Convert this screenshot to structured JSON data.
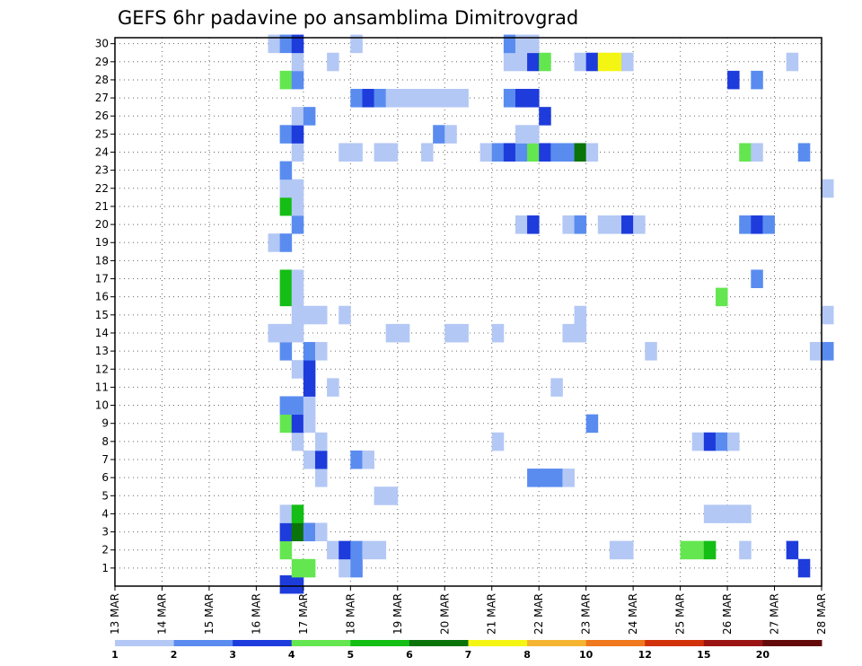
{
  "chart_data": {
    "type": "heatmap",
    "title": "GEFS 6hr padavine po ansamblima Dimitrovgrad",
    "x_ticks": [
      "13 MAR",
      "14 MAR",
      "15 MAR",
      "16 MAR",
      "17 MAR",
      "18 MAR",
      "19 MAR",
      "20 MAR",
      "21 MAR",
      "22 MAR",
      "23 MAR",
      "24 MAR",
      "25 MAR",
      "26 MAR",
      "27 MAR",
      "28 MAR"
    ],
    "x_range": [
      "13 MAR",
      "28 MAR"
    ],
    "y_ticks": [
      "1",
      "2",
      "3",
      "4",
      "5",
      "6",
      "7",
      "8",
      "9",
      "10",
      "11",
      "12",
      "13",
      "14",
      "15",
      "16",
      "17",
      "18",
      "19",
      "20",
      "21",
      "22",
      "23",
      "24",
      "25",
      "26",
      "27",
      "28",
      "29",
      "30"
    ],
    "y_range": [
      0,
      30
    ],
    "grid": true,
    "levels": [
      "1",
      "2",
      "3",
      "4",
      "5",
      "6",
      "7",
      "8",
      "10",
      "12",
      "15",
      "20"
    ],
    "level_colors": [
      "#b4c8f5",
      "#5a8cf0",
      "#1e3cdc",
      "#64e650",
      "#14be14",
      "#0a730a",
      "#f5f514",
      "#f5b432",
      "#f0781e",
      "#d2320a",
      "#9b1414",
      "#640a0a"
    ],
    "cells_note": "each cell: [x index in 6-hour steps from 13 MAR 00 UTC, ensemble member, class (1=1-2 ... 6=6-7 ... 7=7-8)]",
    "cells": [
      [
        14,
        0,
        3
      ],
      [
        15,
        0,
        3
      ],
      [
        15,
        1,
        4
      ],
      [
        16,
        1,
        4
      ],
      [
        19,
        1,
        1
      ],
      [
        20,
        1,
        2
      ],
      [
        58,
        1,
        3
      ],
      [
        14,
        2,
        4
      ],
      [
        18,
        2,
        1
      ],
      [
        19,
        2,
        3
      ],
      [
        20,
        2,
        2
      ],
      [
        21,
        2,
        1
      ],
      [
        22,
        2,
        1
      ],
      [
        42,
        2,
        1
      ],
      [
        43,
        2,
        1
      ],
      [
        48,
        2,
        4
      ],
      [
        49,
        2,
        4
      ],
      [
        50,
        2,
        5
      ],
      [
        53,
        2,
        1
      ],
      [
        57,
        2,
        3
      ],
      [
        14,
        3,
        3
      ],
      [
        15,
        3,
        6
      ],
      [
        16,
        3,
        2
      ],
      [
        17,
        3,
        1
      ],
      [
        14,
        4,
        1
      ],
      [
        15,
        4,
        5
      ],
      [
        50,
        4,
        1
      ],
      [
        51,
        4,
        1
      ],
      [
        52,
        4,
        1
      ],
      [
        53,
        4,
        1
      ],
      [
        22,
        5,
        1
      ],
      [
        23,
        5,
        1
      ],
      [
        17,
        6,
        1
      ],
      [
        35,
        6,
        2
      ],
      [
        36,
        6,
        2
      ],
      [
        37,
        6,
        2
      ],
      [
        38,
        6,
        1
      ],
      [
        16,
        7,
        1
      ],
      [
        17,
        7,
        3
      ],
      [
        20,
        7,
        2
      ],
      [
        21,
        7,
        1
      ],
      [
        15,
        8,
        1
      ],
      [
        17,
        8,
        1
      ],
      [
        32,
        8,
        1
      ],
      [
        49,
        8,
        1
      ],
      [
        50,
        8,
        3
      ],
      [
        51,
        8,
        2
      ],
      [
        52,
        8,
        1
      ],
      [
        14,
        9,
        4
      ],
      [
        15,
        9,
        3
      ],
      [
        16,
        9,
        1
      ],
      [
        40,
        9,
        2
      ],
      [
        14,
        10,
        2
      ],
      [
        15,
        10,
        2
      ],
      [
        16,
        10,
        1
      ],
      [
        16,
        11,
        3
      ],
      [
        18,
        11,
        1
      ],
      [
        37,
        11,
        1
      ],
      [
        15,
        12,
        1
      ],
      [
        16,
        12,
        3
      ],
      [
        14,
        13,
        2
      ],
      [
        16,
        13,
        2
      ],
      [
        17,
        13,
        1
      ],
      [
        45,
        13,
        1
      ],
      [
        59,
        13,
        1
      ],
      [
        60,
        13,
        2
      ],
      [
        13,
        14,
        1
      ],
      [
        14,
        14,
        1
      ],
      [
        15,
        14,
        1
      ],
      [
        23,
        14,
        1
      ],
      [
        24,
        14,
        1
      ],
      [
        28,
        14,
        1
      ],
      [
        29,
        14,
        1
      ],
      [
        32,
        14,
        1
      ],
      [
        38,
        14,
        1
      ],
      [
        39,
        14,
        1
      ],
      [
        15,
        15,
        1
      ],
      [
        16,
        15,
        1
      ],
      [
        17,
        15,
        1
      ],
      [
        19,
        15,
        1
      ],
      [
        39,
        15,
        1
      ],
      [
        60,
        15,
        1
      ],
      [
        14,
        16,
        5
      ],
      [
        15,
        16,
        1
      ],
      [
        51,
        16,
        4
      ],
      [
        14,
        17,
        5
      ],
      [
        15,
        17,
        1
      ],
      [
        54,
        17,
        2
      ],
      [
        13,
        19,
        1
      ],
      [
        14,
        19,
        2
      ],
      [
        15,
        20,
        2
      ],
      [
        34,
        20,
        1
      ],
      [
        35,
        20,
        3
      ],
      [
        38,
        20,
        1
      ],
      [
        39,
        20,
        2
      ],
      [
        41,
        20,
        1
      ],
      [
        42,
        20,
        1
      ],
      [
        43,
        20,
        3
      ],
      [
        44,
        20,
        1
      ],
      [
        53,
        20,
        2
      ],
      [
        54,
        20,
        3
      ],
      [
        55,
        20,
        2
      ],
      [
        14,
        21,
        5
      ],
      [
        15,
        21,
        1
      ],
      [
        14,
        22,
        1
      ],
      [
        15,
        22,
        1
      ],
      [
        60,
        22,
        1
      ],
      [
        14,
        23,
        2
      ],
      [
        15,
        24,
        1
      ],
      [
        19,
        24,
        1
      ],
      [
        20,
        24,
        1
      ],
      [
        22,
        24,
        1
      ],
      [
        23,
        24,
        1
      ],
      [
        26,
        24,
        1
      ],
      [
        31,
        24,
        1
      ],
      [
        32,
        24,
        2
      ],
      [
        33,
        24,
        3
      ],
      [
        34,
        24,
        2
      ],
      [
        35,
        24,
        4
      ],
      [
        36,
        24,
        3
      ],
      [
        37,
        24,
        2
      ],
      [
        38,
        24,
        2
      ],
      [
        39,
        24,
        6
      ],
      [
        40,
        24,
        1
      ],
      [
        53,
        24,
        4
      ],
      [
        54,
        24,
        1
      ],
      [
        58,
        24,
        2
      ],
      [
        14,
        25,
        2
      ],
      [
        15,
        25,
        3
      ],
      [
        27,
        25,
        2
      ],
      [
        28,
        25,
        1
      ],
      [
        34,
        25,
        1
      ],
      [
        35,
        25,
        1
      ],
      [
        15,
        26,
        1
      ],
      [
        16,
        26,
        2
      ],
      [
        36,
        26,
        3
      ],
      [
        20,
        27,
        2
      ],
      [
        21,
        27,
        3
      ],
      [
        22,
        27,
        2
      ],
      [
        23,
        27,
        1
      ],
      [
        24,
        27,
        1
      ],
      [
        25,
        27,
        1
      ],
      [
        26,
        27,
        1
      ],
      [
        27,
        27,
        1
      ],
      [
        28,
        27,
        1
      ],
      [
        29,
        27,
        1
      ],
      [
        33,
        27,
        2
      ],
      [
        34,
        27,
        3
      ],
      [
        35,
        27,
        3
      ],
      [
        14,
        28,
        4
      ],
      [
        15,
        28,
        2
      ],
      [
        52,
        28,
        3
      ],
      [
        54,
        28,
        2
      ],
      [
        15,
        29,
        1
      ],
      [
        18,
        29,
        1
      ],
      [
        33,
        29,
        1
      ],
      [
        34,
        29,
        1
      ],
      [
        35,
        29,
        3
      ],
      [
        36,
        29,
        4
      ],
      [
        39,
        29,
        1
      ],
      [
        40,
        29,
        3
      ],
      [
        41,
        29,
        7
      ],
      [
        42,
        29,
        7
      ],
      [
        43,
        29,
        1
      ],
      [
        57,
        29,
        1
      ],
      [
        13,
        30,
        1
      ],
      [
        14,
        30,
        2
      ],
      [
        15,
        30,
        3
      ],
      [
        20,
        30,
        1
      ],
      [
        33,
        30,
        2
      ],
      [
        34,
        30,
        1
      ],
      [
        35,
        30,
        1
      ]
    ]
  }
}
